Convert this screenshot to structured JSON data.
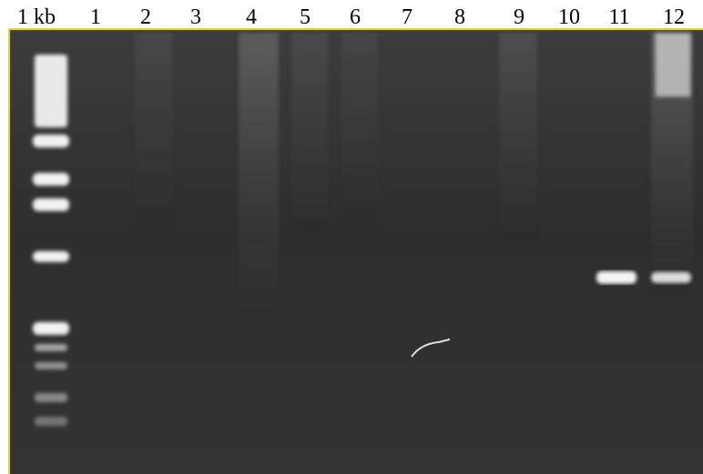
{
  "lanes": [
    "1 kb",
    "1",
    "2",
    "3",
    "4",
    "5",
    "6",
    "7",
    "8",
    "9",
    "10",
    "11",
    "12"
  ]
}
